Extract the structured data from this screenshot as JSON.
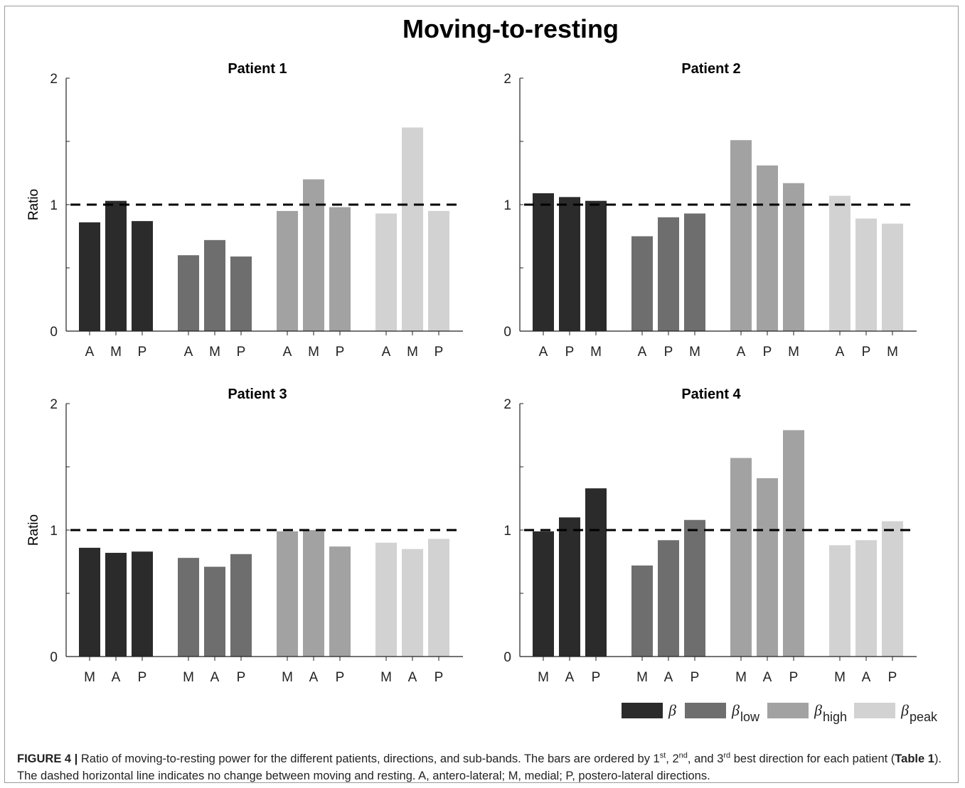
{
  "figure_title": "Moving-to-resting",
  "chart_data": [
    {
      "type": "bar",
      "title": "Patient 1",
      "ylabel": "Ratio",
      "ylim": [
        0,
        2
      ],
      "yticks": [
        "0",
        "1",
        "2"
      ],
      "reference_line": 1,
      "series": [
        {
          "name": "β",
          "categories": [
            "A",
            "M",
            "P"
          ],
          "values": [
            0.86,
            1.03,
            0.87
          ]
        },
        {
          "name": "β low",
          "categories": [
            "A",
            "M",
            "P"
          ],
          "values": [
            0.6,
            0.72,
            0.59
          ]
        },
        {
          "name": "β high",
          "categories": [
            "A",
            "M",
            "P"
          ],
          "values": [
            0.95,
            1.2,
            0.98
          ]
        },
        {
          "name": "β peak",
          "categories": [
            "A",
            "M",
            "P"
          ],
          "values": [
            0.93,
            1.61,
            0.95
          ]
        }
      ]
    },
    {
      "type": "bar",
      "title": "Patient 2",
      "ylabel": "",
      "ylim": [
        0,
        2
      ],
      "yticks": [
        "0",
        "1",
        "2"
      ],
      "reference_line": 1,
      "series": [
        {
          "name": "β",
          "categories": [
            "A",
            "P",
            "M"
          ],
          "values": [
            1.09,
            1.06,
            1.03
          ]
        },
        {
          "name": "β low",
          "categories": [
            "A",
            "P",
            "M"
          ],
          "values": [
            0.75,
            0.9,
            0.93
          ]
        },
        {
          "name": "β high",
          "categories": [
            "A",
            "P",
            "M"
          ],
          "values": [
            1.51,
            1.31,
            1.17
          ]
        },
        {
          "name": "β peak",
          "categories": [
            "A",
            "P",
            "M"
          ],
          "values": [
            1.07,
            0.89,
            0.85
          ]
        }
      ]
    },
    {
      "type": "bar",
      "title": "Patient 3",
      "ylabel": "Ratio",
      "ylim": [
        0,
        2
      ],
      "yticks": [
        "0",
        "1",
        "2"
      ],
      "reference_line": 1,
      "series": [
        {
          "name": "β",
          "categories": [
            "M",
            "A",
            "P"
          ],
          "values": [
            0.86,
            0.82,
            0.83
          ]
        },
        {
          "name": "β low",
          "categories": [
            "M",
            "A",
            "P"
          ],
          "values": [
            0.78,
            0.71,
            0.81
          ]
        },
        {
          "name": "β high",
          "categories": [
            "M",
            "A",
            "P"
          ],
          "values": [
            0.99,
            1.0,
            0.87
          ]
        },
        {
          "name": "β peak",
          "categories": [
            "M",
            "A",
            "P"
          ],
          "values": [
            0.9,
            0.85,
            0.93
          ]
        }
      ]
    },
    {
      "type": "bar",
      "title": "Patient 4",
      "ylabel": "",
      "ylim": [
        0,
        2
      ],
      "yticks": [
        "0",
        "1",
        "2"
      ],
      "reference_line": 1,
      "series": [
        {
          "name": "β",
          "categories": [
            "M",
            "A",
            "P"
          ],
          "values": [
            0.99,
            1.1,
            1.33
          ]
        },
        {
          "name": "β low",
          "categories": [
            "M",
            "A",
            "P"
          ],
          "values": [
            0.72,
            0.92,
            1.08
          ]
        },
        {
          "name": "β high",
          "categories": [
            "M",
            "A",
            "P"
          ],
          "values": [
            1.57,
            1.41,
            1.79
          ]
        },
        {
          "name": "β peak",
          "categories": [
            "M",
            "A",
            "P"
          ],
          "values": [
            0.88,
            0.92,
            1.07
          ]
        }
      ]
    }
  ],
  "legend": {
    "placement": "bottom-right",
    "items": [
      {
        "symbol": "β",
        "subscript": "",
        "color": "#2b2b2b"
      },
      {
        "symbol": "β",
        "subscript": "low",
        "color": "#6e6e6e"
      },
      {
        "symbol": "β",
        "subscript": "high",
        "color": "#a2a2a2"
      },
      {
        "symbol": "β",
        "subscript": "peak",
        "color": "#d2d2d2"
      }
    ]
  },
  "colors": {
    "beta": "#2b2b2b",
    "beta_low": "#6e6e6e",
    "beta_high": "#a2a2a2",
    "beta_peak": "#d2d2d2"
  },
  "caption": {
    "label": "FIGURE 4 |",
    "t1": " Ratio of moving-to-resting power for the different patients, directions, and sub-bands. The bars are ordered by 1",
    "s1": "st",
    "t2": ", 2",
    "s2": "nd",
    "t3": ", and 3",
    "s3": "rd",
    "t4": " best direction for each patient (",
    "table_ref": "Table 1",
    "t5": "). The dashed horizontal line indicates no change between moving and resting. A, antero-lateral; M, medial; P, postero-lateral directions."
  }
}
